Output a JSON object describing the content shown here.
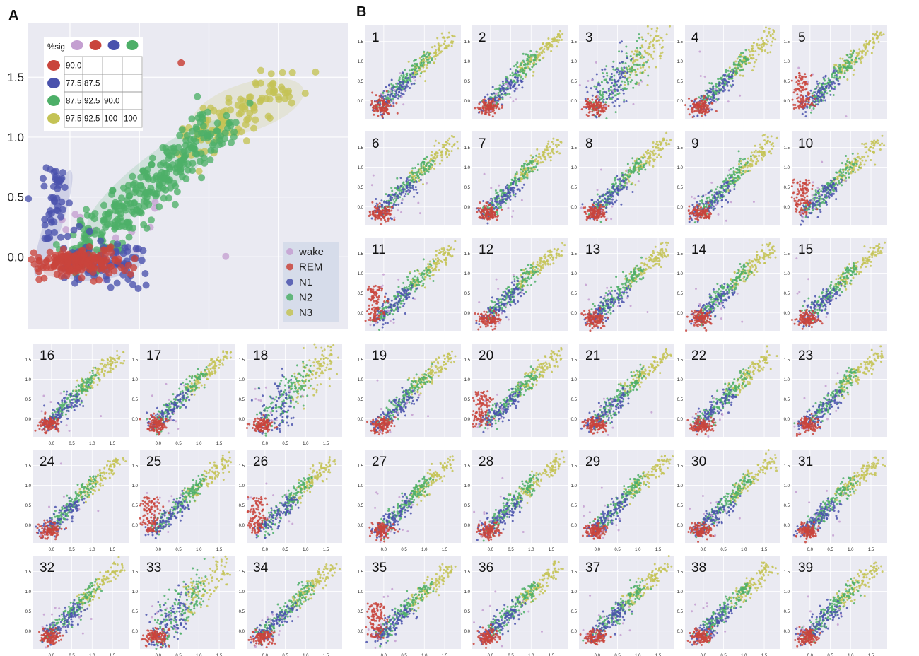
{
  "chart_data": {
    "type": "scatter",
    "panels": {
      "A": {
        "letter": "A",
        "yticks": [
          "1.5",
          "1.0",
          "0.5",
          "0.0"
        ],
        "ytick_values": [
          1.5,
          1.0,
          0.5,
          0.0
        ],
        "xlim": [
          -0.3,
          2.0
        ],
        "ylim": [
          -0.6,
          1.95
        ],
        "grid": true,
        "legend": {
          "placement": "lower-right",
          "entries": [
            "wake",
            "REM",
            "N1",
            "N2",
            "N3"
          ]
        },
        "series_colors": {
          "wake": "#c49fd1",
          "REM": "#c9443c",
          "N1": "#4a52ad",
          "N2": "#4daf68",
          "N3": "#c4c355"
        },
        "sig_table": {
          "header": "%sig",
          "header_colors": [
            "#c49fd1",
            "#c9443c",
            "#4a52ad",
            "#4daf68"
          ],
          "rows": [
            {
              "color": "#c9443c",
              "cells": [
                "90.0",
                "",
                "",
                ""
              ]
            },
            {
              "color": "#4a52ad",
              "cells": [
                "77.5",
                "87.5",
                "",
                ""
              ]
            },
            {
              "color": "#4daf68",
              "cells": [
                "87.5",
                "92.5",
                "90.0",
                ""
              ]
            },
            {
              "color": "#c4c355",
              "cells": [
                "97.5",
                "92.5",
                "100",
                "100"
              ]
            }
          ]
        }
      },
      "B": {
        "letter": "B"
      }
    },
    "small_multiples": {
      "labels": [
        "1",
        "2",
        "3",
        "4",
        "5",
        "6",
        "7",
        "8",
        "9",
        "10",
        "11",
        "12",
        "13",
        "14",
        "15",
        "16",
        "17",
        "18",
        "19",
        "20",
        "21",
        "22",
        "23",
        "24",
        "25",
        "26",
        "27",
        "28",
        "29",
        "30",
        "31",
        "32",
        "33",
        "34",
        "35",
        "36",
        "37",
        "38",
        "39"
      ],
      "yticks": [
        "1.5",
        "1.0",
        "0.5",
        "0.0"
      ],
      "ytick_values": [
        1.5,
        1.0,
        0.5,
        0.0
      ],
      "xticks": [
        "0.0",
        "0.5",
        "1.0",
        "1.5"
      ],
      "xtick_values": [
        0.0,
        0.5,
        1.0,
        1.5
      ],
      "xlim": [
        -0.45,
        1.9
      ],
      "ylim": [
        -0.45,
        1.9
      ]
    }
  }
}
